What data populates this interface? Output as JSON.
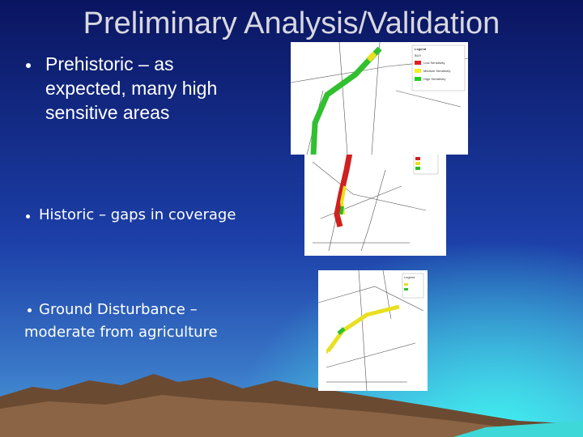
{
  "slide": {
    "title": "Preliminary Analysis/Validation",
    "bullets": [
      {
        "lines": [
          "Prehistoric – as",
          "expected, many high",
          "sensitive areas"
        ]
      },
      {
        "lines": [
          "Historic – gaps in coverage"
        ]
      },
      {
        "lines": [
          "Ground Disturbance –",
          "moderate from agriculture"
        ]
      }
    ],
    "maps": [
      {
        "legend": [
          "Legend",
          "BUV",
          "Low Sensitivity",
          "Medium Sensitivity",
          "High Sensitivity"
        ]
      },
      {
        "legend": [
          "Legend"
        ]
      },
      {
        "legend": [
          "Legend"
        ]
      }
    ]
  }
}
